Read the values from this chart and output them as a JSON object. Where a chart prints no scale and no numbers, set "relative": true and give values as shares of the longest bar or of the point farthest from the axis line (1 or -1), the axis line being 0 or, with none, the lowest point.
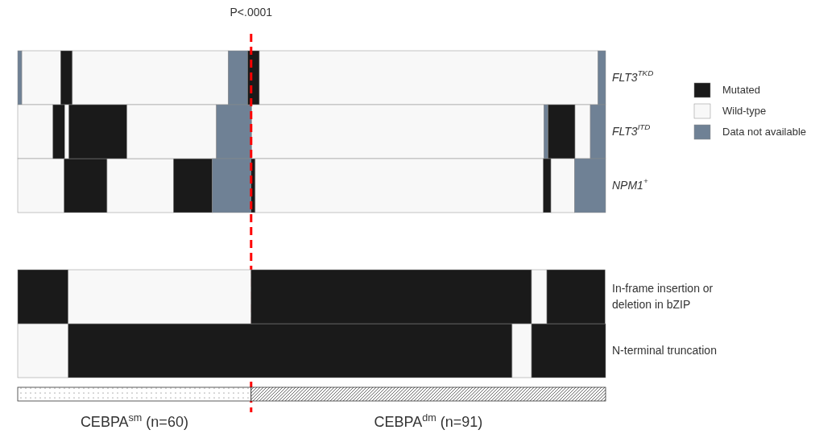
{
  "chart_data": [
    {
      "type": "bar",
      "orientation": "horizontal",
      "stacked": true,
      "relative": true,
      "categories": [
        "FLT3$^{TKD}$",
        "FLT3$^{ITD}$",
        "NPM1$^{+}$"
      ],
      "series": [
        {
          "name": "Data not available",
          "color": "#6f8195",
          "values": [
            0.007,
            0,
            0
          ]
        },
        {
          "name": "Wild-type",
          "color": "#f8f8f8",
          "values": [
            0.066,
            0.06,
            0.079
          ]
        },
        {
          "name": "Mutated",
          "color": "#1a1a1a",
          "values": [
            0.02,
            0.02,
            0.073
          ]
        },
        {
          "color": "#f8f8f8",
          "values": [
            0.265,
            0.007,
            0.113
          ]
        },
        {
          "color": "#1a1a1a",
          "values": [
            0,
            0.099,
            0.066
          ]
        },
        {
          "color": "#f8f8f8",
          "values": [
            0,
            0.152,
            0
          ]
        },
        {
          "color": "#6f8195",
          "values": [
            0.033,
            0.06,
            0.066
          ]
        },
        {
          "color": "#1a1a1a",
          "values": [
            0.02,
            0,
            0.007
          ]
        },
        {
          "color": "#f8f8f8",
          "values": [
            0.576,
            0.497,
            0.49
          ]
        },
        {
          "color": "#6f8195",
          "values": [
            0.013,
            0.007,
            0
          ]
        },
        {
          "color": "#1a1a1a",
          "values": [
            0,
            0.046,
            0.013
          ]
        },
        {
          "color": "#f8f8f8",
          "values": [
            0,
            0.026,
            0.04
          ]
        },
        {
          "color": "#6f8195",
          "values": [
            0,
            0.026,
            0.053
          ]
        }
      ],
      "legend": "right",
      "ref_lines": [
        {
          "axis": "x",
          "value": 0.397,
          "label": "P<.0001",
          "color": "#ff0000",
          "line_style": "dashed"
        }
      ]
    },
    {
      "type": "bar",
      "orientation": "horizontal",
      "stacked": true,
      "relative": true,
      "categories": [
        "In-frame insertion or deletion in bZIP",
        "N-terminal truncation"
      ],
      "series": [
        {
          "color": "#f8f8f8",
          "values": [
            0,
            0.086
          ]
        },
        {
          "color": "#1a1a1a",
          "values": [
            0.086,
            0.755
          ]
        },
        {
          "color": "#f8f8f8",
          "values": [
            0.311,
            0.033
          ]
        },
        {
          "color": "#1a1a1a",
          "values": [
            0.477,
            0.126
          ]
        },
        {
          "color": "#f8f8f8",
          "values": [
            0.026,
            0
          ]
        },
        {
          "color": "#1a1a1a",
          "values": [
            0.099,
            0
          ]
        }
      ],
      "bands": [
        {
          "axis": "x",
          "from": 0,
          "to": 0.397,
          "label": "CEBPA$^{sm}$ (n=60)"
        },
        {
          "axis": "x",
          "from": 0.397,
          "to": 1,
          "label": "CEBPA$^{dm}$ (n=91)"
        }
      ]
    }
  ]
}
